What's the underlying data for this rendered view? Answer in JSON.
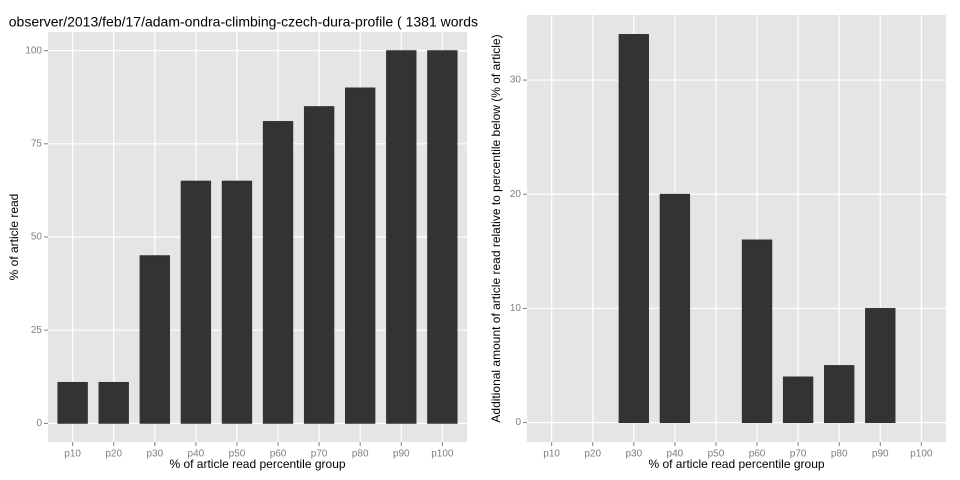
{
  "chart_data": [
    {
      "type": "bar",
      "title": "observer/2013/feb/17/adam-ondra-climbing-czech-dura-profile ( 1381 words",
      "x_label": "% of article read percentile group",
      "y_label": "% of article read",
      "categories": [
        "p10",
        "p20",
        "p30",
        "p40",
        "p50",
        "p60",
        "p70",
        "p80",
        "p90",
        "p100"
      ],
      "values": [
        11,
        11,
        45,
        65,
        65,
        81,
        85,
        90,
        100,
        100
      ],
      "color": "#333333",
      "ylim": [
        -5,
        105
      ],
      "yticks": [
        0,
        25,
        50,
        75,
        100
      ],
      "grid": true
    },
    {
      "type": "bar",
      "x_label": "% of article read percentile group",
      "y_label": "Additional amount of article read relative to percentile below (% of article)",
      "categories": [
        "p10",
        "p20",
        "p30",
        "p40",
        "p50",
        "p60",
        "p70",
        "p80",
        "p90",
        "p100"
      ],
      "values": [
        0,
        0,
        34,
        20,
        0,
        16,
        4,
        5,
        10,
        0
      ],
      "color": "#333333",
      "ylim": [
        -1.7,
        35.7
      ],
      "yticks": [
        0,
        10,
        20,
        30
      ],
      "grid": true
    }
  ]
}
